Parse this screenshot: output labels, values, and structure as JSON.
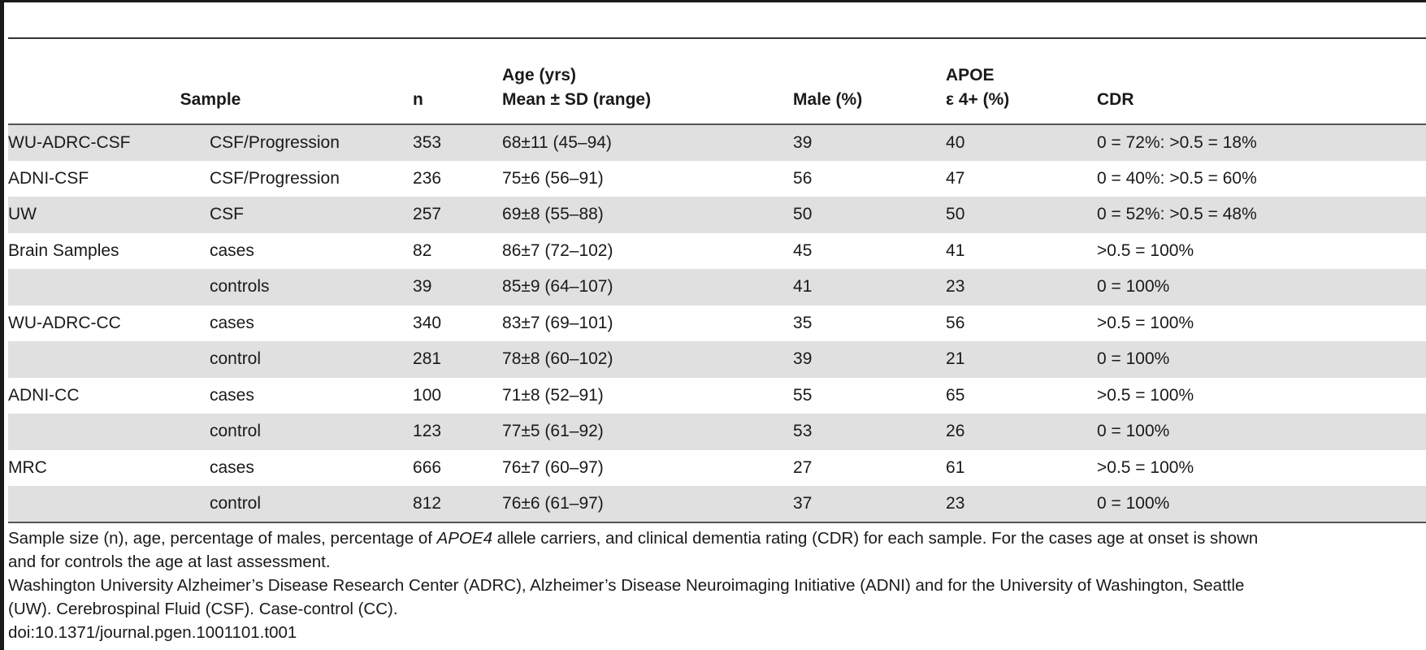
{
  "table": {
    "headers": {
      "sample": "Sample",
      "n": "n",
      "age_line1": "Age (yrs)",
      "age_line2": "Mean ± SD (range)",
      "male": "Male (%)",
      "apoe_line1": "APOE",
      "apoe_line2": "ε 4+ (%)",
      "cdr": "CDR"
    },
    "rows": [
      {
        "sample": "WU-ADRC-CSF",
        "type": "CSF/Progression",
        "n": "353",
        "age": "68±11 (45–94)",
        "male": "39",
        "apoe": "40",
        "cdr": "0 = 72%: >0.5 = 18%"
      },
      {
        "sample": "ADNI-CSF",
        "type": "CSF/Progression",
        "n": "236",
        "age": "75±6 (56–91)",
        "male": "56",
        "apoe": "47",
        "cdr": "0 = 40%: >0.5 = 60%"
      },
      {
        "sample": "UW",
        "type": "CSF",
        "n": "257",
        "age": "69±8 (55–88)",
        "male": "50",
        "apoe": "50",
        "cdr": "0 = 52%: >0.5 = 48%"
      },
      {
        "sample": "Brain Samples",
        "type": "cases",
        "n": "82",
        "age": "86±7 (72–102)",
        "male": "45",
        "apoe": "41",
        "cdr": ">0.5 = 100%"
      },
      {
        "sample": "",
        "type": "controls",
        "n": "39",
        "age": "85±9 (64–107)",
        "male": "41",
        "apoe": "23",
        "cdr": "0 = 100%"
      },
      {
        "sample": "WU-ADRC-CC",
        "type": "cases",
        "n": "340",
        "age": "83±7 (69–101)",
        "male": "35",
        "apoe": "56",
        "cdr": ">0.5 = 100%"
      },
      {
        "sample": "",
        "type": "control",
        "n": "281",
        "age": "78±8 (60–102)",
        "male": "39",
        "apoe": "21",
        "cdr": "0 = 100%"
      },
      {
        "sample": "ADNI-CC",
        "type": "cases",
        "n": "100",
        "age": "71±8 (52–91)",
        "male": "55",
        "apoe": "65",
        "cdr": ">0.5 = 100%"
      },
      {
        "sample": "",
        "type": "control",
        "n": "123",
        "age": "77±5 (61–92)",
        "male": "53",
        "apoe": "26",
        "cdr": "0 = 100%"
      },
      {
        "sample": "MRC",
        "type": "cases",
        "n": "666",
        "age": "76±7 (60–97)",
        "male": "27",
        "apoe": "61",
        "cdr": ">0.5 = 100%"
      },
      {
        "sample": "",
        "type": "control",
        "n": "812",
        "age": "76±6 (61–97)",
        "male": "37",
        "apoe": "23",
        "cdr": "0 = 100%"
      }
    ]
  },
  "footnote": {
    "line1_pre": "Sample size (n), age, percentage of males, percentage of ",
    "line1_em": "APOE4",
    "line1_post": " allele carriers, and clinical dementia rating (CDR) for each sample. For the cases age at onset is shown",
    "line2": "and for controls the age at last assessment.",
    "line3": "Washington University Alzheimer’s Disease Research Center (ADRC), Alzheimer’s Disease Neuroimaging Initiative (ADNI) and for the University of Washington, Seattle",
    "line4": "(UW). Cerebrospinal Fluid (CSF). Case-control (CC).",
    "doi": "doi:10.1371/journal.pgen.1001101.t001"
  }
}
